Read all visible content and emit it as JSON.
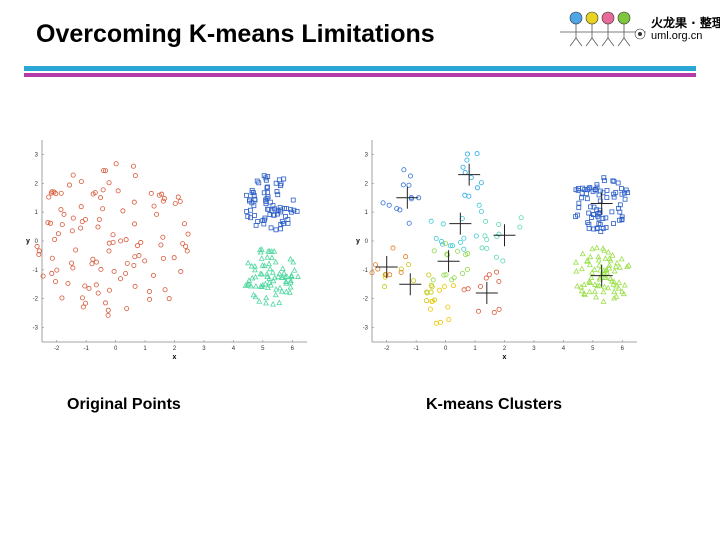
{
  "slide": {
    "title": "Overcoming K-means Limitations"
  },
  "logo": {
    "text_cn": "火龙果 · 整理",
    "url": "uml.org.cn"
  },
  "captions": {
    "left": "Original Points",
    "right": "K-means Clusters"
  },
  "colors": {
    "rule_cyan": "#2aa7d6",
    "rule_magenta": "#b43aa8",
    "orig_red": "#d9593a",
    "orig_blue": "#2d5fc8",
    "orig_green": "#4fd7a0"
  },
  "chart_data": [
    {
      "type": "scatter",
      "title": "",
      "xlabel": "x",
      "ylabel": "y",
      "xlim": [
        -2.5,
        6.5
      ],
      "ylim": [
        -3.5,
        3.5
      ],
      "xticks": [
        -2,
        -1,
        0,
        1,
        2,
        3,
        4,
        5,
        6
      ],
      "yticks": [
        3,
        2,
        1,
        0,
        -1,
        -2,
        -3
      ],
      "grid": false,
      "series": [
        {
          "color": "#d9593a",
          "marker": "circle",
          "center": [
            0,
            0
          ],
          "radius": 2.8,
          "count": 110
        },
        {
          "color": "#2d5fc8",
          "marker": "square",
          "center": [
            5.3,
            1.3
          ],
          "radius": 1.0,
          "count": 75
        },
        {
          "color": "#4fd7a0",
          "marker": "triangle",
          "center": [
            5.3,
            -1.2
          ],
          "radius": 1.0,
          "count": 75
        }
      ]
    },
    {
      "type": "scatter",
      "title": "",
      "xlabel": "x",
      "ylabel": "y",
      "xlim": [
        -2.5,
        6.5
      ],
      "ylim": [
        -3.5,
        3.5
      ],
      "xticks": [
        -2,
        -1,
        0,
        1,
        2,
        3,
        4,
        5,
        6
      ],
      "yticks": [
        3,
        2,
        1,
        0,
        -1,
        -2,
        -3
      ],
      "grid": false,
      "series": [
        {
          "color": "#2d5fc8",
          "marker": "square",
          "center": [
            5.3,
            1.3
          ],
          "radius": 1.0,
          "count": 75
        },
        {
          "color": "#9be04a",
          "marker": "triangle",
          "center": [
            5.3,
            -1.2
          ],
          "radius": 1.0,
          "count": 75
        },
        {
          "color": "#2f6fd4",
          "marker": "circle",
          "center": [
            -1.3,
            1.5
          ],
          "radius": 1.0,
          "count": 12
        },
        {
          "color": "#3ec8d6",
          "marker": "circle",
          "center": [
            0.5,
            0.6
          ],
          "radius": 1.0,
          "count": 14
        },
        {
          "color": "#5ad6b8",
          "marker": "circle",
          "center": [
            2.0,
            0.2
          ],
          "radius": 0.9,
          "count": 12
        },
        {
          "color": "#27a7e8",
          "marker": "circle",
          "center": [
            0.8,
            2.3
          ],
          "radius": 0.8,
          "count": 10
        },
        {
          "color": "#8cd94a",
          "marker": "circle",
          "center": [
            0.1,
            -0.7
          ],
          "radius": 0.9,
          "count": 14
        },
        {
          "color": "#c3c90a",
          "marker": "circle",
          "center": [
            -1.2,
            -1.5
          ],
          "radius": 1.0,
          "count": 14
        },
        {
          "color": "#f0c400",
          "marker": "circle",
          "center": [
            -0.2,
            -2.1
          ],
          "radius": 0.8,
          "count": 10
        },
        {
          "color": "#d9593a",
          "marker": "circle",
          "center": [
            1.4,
            -1.8
          ],
          "radius": 0.8,
          "count": 10
        },
        {
          "color": "#e17a1f",
          "marker": "circle",
          "center": [
            -2.0,
            -0.9
          ],
          "radius": 0.8,
          "count": 8
        }
      ],
      "centroids": [
        [
          -1.3,
          1.5
        ],
        [
          0.5,
          0.6
        ],
        [
          2.0,
          0.2
        ],
        [
          0.8,
          2.3
        ],
        [
          0.1,
          -0.7
        ],
        [
          -1.2,
          -1.5
        ],
        [
          -2.0,
          -0.9
        ],
        [
          1.4,
          -1.8
        ],
        [
          5.3,
          1.3
        ],
        [
          5.3,
          -1.2
        ]
      ]
    }
  ]
}
